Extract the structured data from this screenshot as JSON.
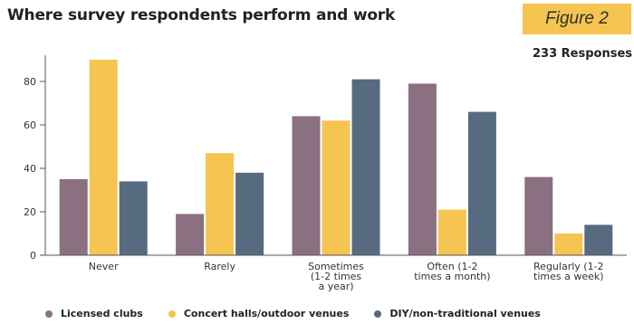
{
  "header": {
    "title": "Where survey respondents perform and work",
    "figure_label": "Figure 2",
    "responses_label": "233 Responses"
  },
  "chart_data": {
    "type": "bar",
    "title": "Where survey respondents perform and work",
    "xlabel": "",
    "ylabel": "",
    "categories": [
      [
        "Never"
      ],
      [
        "Rarely"
      ],
      [
        "Sometimes",
        "(1-2 times",
        "a year)"
      ],
      [
        "Often (1-2",
        "times a month)"
      ],
      [
        "Regularly (1-2",
        "times a week)"
      ]
    ],
    "series": [
      {
        "name": "Licensed clubs",
        "color": "#8a7080",
        "values": [
          35,
          19,
          64,
          79,
          36
        ]
      },
      {
        "name": "Concert halls/outdoor venues",
        "color": "#f5c451",
        "values": [
          90,
          47,
          62,
          21,
          10
        ]
      },
      {
        "name": "DIY/non-traditional venues",
        "color": "#566a80",
        "values": [
          34,
          38,
          81,
          66,
          14
        ]
      }
    ],
    "y_ticks": [
      0,
      20,
      40,
      60,
      80
    ],
    "ylim": [
      0,
      92
    ],
    "grid": false,
    "legend_position": "bottom"
  }
}
